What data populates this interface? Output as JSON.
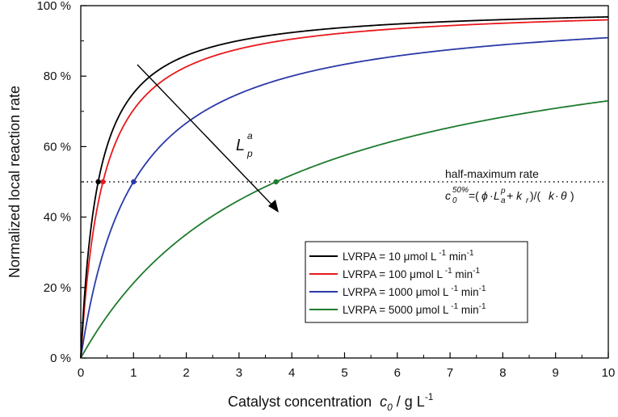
{
  "chart_data": {
    "type": "line",
    "x_min": 0,
    "x_max": 10,
    "y_min": 0,
    "y_max": 100,
    "xlabel_prefix": "Catalyst concentration",
    "xlabel_var": "c",
    "xlabel_sub": "0",
    "xlabel_unit": " / g L",
    "xlabel_sup": "-1",
    "ylabel": "Normalized local reaction rate",
    "x_ticks": [
      {
        "value": 0,
        "label": "0"
      },
      {
        "value": 1,
        "label": "1"
      },
      {
        "value": 2,
        "label": "2"
      },
      {
        "value": 3,
        "label": "3"
      },
      {
        "value": 4,
        "label": "4"
      },
      {
        "value": 5,
        "label": "5"
      },
      {
        "value": 6,
        "label": "6"
      },
      {
        "value": 7,
        "label": "7"
      },
      {
        "value": 8,
        "label": "8"
      },
      {
        "value": 9,
        "label": "9"
      },
      {
        "value": 10,
        "label": "10"
      }
    ],
    "y_ticks": [
      {
        "value": 0,
        "label": "0 %"
      },
      {
        "value": 20,
        "label": "20 %"
      },
      {
        "value": 40,
        "label": "40 %"
      },
      {
        "value": 60,
        "label": "60 %"
      },
      {
        "value": 80,
        "label": "80 %"
      },
      {
        "value": 100,
        "label": "100 %"
      }
    ],
    "series": [
      {
        "name": "LVRPA = 10 μmol L",
        "unit_mid": " min",
        "sup": "-1",
        "color": "#000000",
        "half_max_x": 0.33,
        "dot_color": "#000000"
      },
      {
        "name": "LVRPA = 100 μmol L",
        "unit_mid": " min",
        "sup": "-1",
        "color": "#e8191c",
        "half_max_x": 0.42,
        "dot_color": "#e8191c"
      },
      {
        "name": "LVRPA = 1000 μmol L",
        "unit_mid": " min",
        "sup": "-1",
        "color": "#2b3aa8",
        "half_max_x": 1.0,
        "dot_color": "#2b3aa8"
      },
      {
        "name": "LVRPA = 5000 μmol L",
        "unit_mid": " min",
        "sup": "-1",
        "color": "#1e7b2e",
        "half_max_x": 3.7,
        "dot_color": "#1e7b2e"
      }
    ],
    "half_max_line": {
      "y": 50,
      "label": "half-maximum rate"
    },
    "formula": {
      "c": "c",
      "c_sub": "0",
      "c_sup": "50%",
      "p1": "=(",
      "phi": "ϕ",
      "dot": "·",
      "L": "L",
      "L_sup": "p",
      "L_sub": "a",
      "plus": "+ k",
      "kr_sub": "r",
      "p2": ")/(",
      "k": "k",
      "dot2": "·",
      "theta": "θ",
      "p3": ")"
    },
    "arrow_label": {
      "L": "L",
      "sup": "a",
      "sub": "p"
    }
  }
}
